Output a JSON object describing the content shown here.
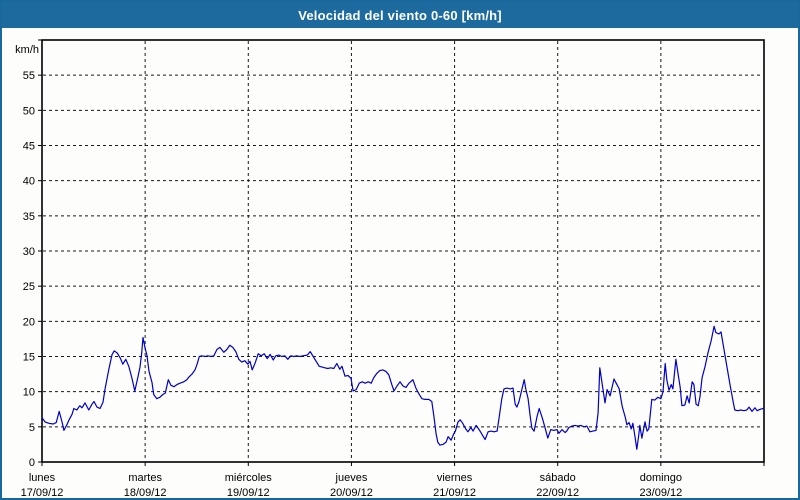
{
  "window": {
    "title": "Velocidad del viento 0-60 [km/h]"
  },
  "colors": {
    "titlebar": "#1d6a9e",
    "frame_border": "#19689d",
    "background": "#fdfdfb",
    "plot_border": "#000000",
    "gridline": "#1a1a1a",
    "line": "#0000cc",
    "title_text": "#ffffff",
    "axis_text": "#000000"
  },
  "chart_data": {
    "type": "line",
    "title": "Velocidad del viento 0-60 [km/h]",
    "ylabel": "km/h",
    "ylim": [
      0,
      60
    ],
    "ytick_step": 5,
    "ytick_labels": [
      "0",
      "5",
      "10",
      "15",
      "20",
      "25",
      "30",
      "35",
      "40",
      "45",
      "50",
      "55"
    ],
    "xlim_hours": [
      0,
      168
    ],
    "grid": "dashed",
    "legend_position": "none",
    "days": [
      {
        "name": "lunes",
        "date": "17/09/12"
      },
      {
        "name": "martes",
        "date": "18/09/12"
      },
      {
        "name": "miércoles",
        "date": "19/09/12"
      },
      {
        "name": "jueves",
        "date": "20/09/12"
      },
      {
        "name": "viernes",
        "date": "21/09/12"
      },
      {
        "name": "sábado",
        "date": "22/09/12"
      },
      {
        "name": "domingo",
        "date": "23/09/12"
      }
    ],
    "series": [
      {
        "name": "Velocidad del viento",
        "unit": "km/h",
        "x_unit": "hours_from_2012-09-17_00:00",
        "points": [
          [
            0,
            6.3
          ],
          [
            0.7,
            5.7
          ],
          [
            1.6,
            5.5
          ],
          [
            2.6,
            5.4
          ],
          [
            3.3,
            5.6
          ],
          [
            4.0,
            7.2
          ],
          [
            4.7,
            5.6
          ],
          [
            5.1,
            4.5
          ],
          [
            5.8,
            5.3
          ],
          [
            6.3,
            6.0
          ],
          [
            7.0,
            6.8
          ],
          [
            7.4,
            7.6
          ],
          [
            8.1,
            7.4
          ],
          [
            8.8,
            8.0
          ],
          [
            9.3,
            7.7
          ],
          [
            10.0,
            8.4
          ],
          [
            10.9,
            7.4
          ],
          [
            11.6,
            8.2
          ],
          [
            12.1,
            8.6
          ],
          [
            12.8,
            7.8
          ],
          [
            13.5,
            7.6
          ],
          [
            14.2,
            8.5
          ],
          [
            14.7,
            10.5
          ],
          [
            15.6,
            13.3
          ],
          [
            16.3,
            15.3
          ],
          [
            16.8,
            15.8
          ],
          [
            17.5,
            15.5
          ],
          [
            18.2,
            14.8
          ],
          [
            18.8,
            13.9
          ],
          [
            19.5,
            14.6
          ],
          [
            20.2,
            13.6
          ],
          [
            20.9,
            12.0
          ],
          [
            21.6,
            10.1
          ],
          [
            22.3,
            12.0
          ],
          [
            22.8,
            13.5
          ],
          [
            23.2,
            15.5
          ],
          [
            23.5,
            17.7
          ],
          [
            24.0,
            16.2
          ],
          [
            24.4,
            15.2
          ],
          [
            24.9,
            12.9
          ],
          [
            25.6,
            11.3
          ],
          [
            26.0,
            9.6
          ],
          [
            26.7,
            9.0
          ],
          [
            27.4,
            9.2
          ],
          [
            28.1,
            9.6
          ],
          [
            28.7,
            9.8
          ],
          [
            29.4,
            11.7
          ],
          [
            30.0,
            10.9
          ],
          [
            30.7,
            10.7
          ],
          [
            31.4,
            11.0
          ],
          [
            32.1,
            11.2
          ],
          [
            33.0,
            11.4
          ],
          [
            33.7,
            11.7
          ],
          [
            34.2,
            12.1
          ],
          [
            34.9,
            12.5
          ],
          [
            35.6,
            13.1
          ],
          [
            36.1,
            13.9
          ],
          [
            36.6,
            15.0
          ],
          [
            37.2,
            15.1
          ],
          [
            37.9,
            15.0
          ],
          [
            38.6,
            15.1
          ],
          [
            39.3,
            15.0
          ],
          [
            40.0,
            15.1
          ],
          [
            40.7,
            16.0
          ],
          [
            41.4,
            16.3
          ],
          [
            42.3,
            15.6
          ],
          [
            43.0,
            16.0
          ],
          [
            43.7,
            16.6
          ],
          [
            44.4,
            16.3
          ],
          [
            45.1,
            15.7
          ],
          [
            45.8,
            14.6
          ],
          [
            46.5,
            14.2
          ],
          [
            47.2,
            14.4
          ],
          [
            47.9,
            13.9
          ],
          [
            48.4,
            14.3
          ],
          [
            48.9,
            13.1
          ],
          [
            49.6,
            14.1
          ],
          [
            50.3,
            15.4
          ],
          [
            51.0,
            15.1
          ],
          [
            51.7,
            15.4
          ],
          [
            52.4,
            14.7
          ],
          [
            53.1,
            15.3
          ],
          [
            53.8,
            14.5
          ],
          [
            54.4,
            15.1
          ],
          [
            55.1,
            15.2
          ],
          [
            55.8,
            15.0
          ],
          [
            56.5,
            15.1
          ],
          [
            57.2,
            14.6
          ],
          [
            57.9,
            15.1
          ],
          [
            58.6,
            15.0
          ],
          [
            59.3,
            15.1
          ],
          [
            60.0,
            15.0
          ],
          [
            60.7,
            15.1
          ],
          [
            61.7,
            15.2
          ],
          [
            62.4,
            15.7
          ],
          [
            63.1,
            15.0
          ],
          [
            63.8,
            14.3
          ],
          [
            64.5,
            13.6
          ],
          [
            65.2,
            13.5
          ],
          [
            65.8,
            13.4
          ],
          [
            66.5,
            13.3
          ],
          [
            67.2,
            13.4
          ],
          [
            67.9,
            13.3
          ],
          [
            68.6,
            14.0
          ],
          [
            69.3,
            13.2
          ],
          [
            69.8,
            13.6
          ],
          [
            70.5,
            12.2
          ],
          [
            71.2,
            12.3
          ],
          [
            71.9,
            11.9
          ],
          [
            72.4,
            10.1
          ],
          [
            73.1,
            10.3
          ],
          [
            73.8,
            11.2
          ],
          [
            74.5,
            11.4
          ],
          [
            75.2,
            11.2
          ],
          [
            75.9,
            11.4
          ],
          [
            76.6,
            11.2
          ],
          [
            77.2,
            12.0
          ],
          [
            77.9,
            12.6
          ],
          [
            78.6,
            13.0
          ],
          [
            79.3,
            13.1
          ],
          [
            80.0,
            12.9
          ],
          [
            80.7,
            12.4
          ],
          [
            81.4,
            11.0
          ],
          [
            81.9,
            10.1
          ],
          [
            82.6,
            10.8
          ],
          [
            83.3,
            11.4
          ],
          [
            84.0,
            10.8
          ],
          [
            84.7,
            10.6
          ],
          [
            85.4,
            11.2
          ],
          [
            86.3,
            11.7
          ],
          [
            87.0,
            10.5
          ],
          [
            87.7,
            9.7
          ],
          [
            88.4,
            9.0
          ],
          [
            89.1,
            8.9
          ],
          [
            90.0,
            8.9
          ],
          [
            90.7,
            8.6
          ],
          [
            91.2,
            6.5
          ],
          [
            91.7,
            4.0
          ],
          [
            92.1,
            2.8
          ],
          [
            92.6,
            2.4
          ],
          [
            93.3,
            2.5
          ],
          [
            94.0,
            2.8
          ],
          [
            94.5,
            3.6
          ],
          [
            95.2,
            3.1
          ],
          [
            95.8,
            4.0
          ],
          [
            96.2,
            4.4
          ],
          [
            96.8,
            5.7
          ],
          [
            97.3,
            6.0
          ],
          [
            97.9,
            5.5
          ],
          [
            98.6,
            4.7
          ],
          [
            99.1,
            4.3
          ],
          [
            99.8,
            4.9
          ],
          [
            100.3,
            4.4
          ],
          [
            101.0,
            5.2
          ],
          [
            101.7,
            4.6
          ],
          [
            102.4,
            3.9
          ],
          [
            103.1,
            3.2
          ],
          [
            103.8,
            4.3
          ],
          [
            104.5,
            4.4
          ],
          [
            105.2,
            4.3
          ],
          [
            105.9,
            4.4
          ],
          [
            106.3,
            6.0
          ],
          [
            107.0,
            9.0
          ],
          [
            107.5,
            10.4
          ],
          [
            108.2,
            10.5
          ],
          [
            108.9,
            10.4
          ],
          [
            109.6,
            10.5
          ],
          [
            110.1,
            8.2
          ],
          [
            110.5,
            7.8
          ],
          [
            111.0,
            8.6
          ],
          [
            111.7,
            10.4
          ],
          [
            112.2,
            11.7
          ],
          [
            112.6,
            10.3
          ],
          [
            113.1,
            9.0
          ],
          [
            113.6,
            6.5
          ],
          [
            114.0,
            4.8
          ],
          [
            114.5,
            4.4
          ],
          [
            115.2,
            6.5
          ],
          [
            115.7,
            7.6
          ],
          [
            116.4,
            6.3
          ],
          [
            117.0,
            5.0
          ],
          [
            117.7,
            3.4
          ],
          [
            118.4,
            4.6
          ],
          [
            119.1,
            4.5
          ],
          [
            119.8,
            4.6
          ],
          [
            120.3,
            4.1
          ],
          [
            121.0,
            4.6
          ],
          [
            121.7,
            4.2
          ],
          [
            122.1,
            4.4
          ],
          [
            122.6,
            4.9
          ],
          [
            123.3,
            5.1
          ],
          [
            124.0,
            5.2
          ],
          [
            124.7,
            5.1
          ],
          [
            125.4,
            5.2
          ],
          [
            126.1,
            5.0
          ],
          [
            126.8,
            5.1
          ],
          [
            127.5,
            4.3
          ],
          [
            128.2,
            4.4
          ],
          [
            128.9,
            4.5
          ],
          [
            129.4,
            7.0
          ],
          [
            129.8,
            13.4
          ],
          [
            130.5,
            10.5
          ],
          [
            131.0,
            8.4
          ],
          [
            131.5,
            10.3
          ],
          [
            132.2,
            9.4
          ],
          [
            132.6,
            10.5
          ],
          [
            133.1,
            11.8
          ],
          [
            133.6,
            11.2
          ],
          [
            134.3,
            10.4
          ],
          [
            135.0,
            7.9
          ],
          [
            135.7,
            6.4
          ],
          [
            136.1,
            5.3
          ],
          [
            136.6,
            5.6
          ],
          [
            137.1,
            4.7
          ],
          [
            137.5,
            5.5
          ],
          [
            138.0,
            3.5
          ],
          [
            138.4,
            1.8
          ],
          [
            138.9,
            4.0
          ],
          [
            139.1,
            5.2
          ],
          [
            139.6,
            3.4
          ],
          [
            140.3,
            5.7
          ],
          [
            140.8,
            4.4
          ],
          [
            141.2,
            4.7
          ],
          [
            141.9,
            8.9
          ],
          [
            142.6,
            8.8
          ],
          [
            143.3,
            9.2
          ],
          [
            144.0,
            9.0
          ],
          [
            144.5,
            10.0
          ],
          [
            145.0,
            14.0
          ],
          [
            145.4,
            11.6
          ],
          [
            145.9,
            10.2
          ],
          [
            146.4,
            11.0
          ],
          [
            146.8,
            10.4
          ],
          [
            147.5,
            14.6
          ],
          [
            148.0,
            12.6
          ],
          [
            148.5,
            10.6
          ],
          [
            148.9,
            8.0
          ],
          [
            149.6,
            8.1
          ],
          [
            150.1,
            9.4
          ],
          [
            150.6,
            8.4
          ],
          [
            151.3,
            11.4
          ],
          [
            151.7,
            11.0
          ],
          [
            152.2,
            8.2
          ],
          [
            152.7,
            8.0
          ],
          [
            153.1,
            9.3
          ],
          [
            153.6,
            12.0
          ],
          [
            154.3,
            13.6
          ],
          [
            155.0,
            15.6
          ],
          [
            155.7,
            17.2
          ],
          [
            156.4,
            19.3
          ],
          [
            156.8,
            18.4
          ],
          [
            157.5,
            18.2
          ],
          [
            158.0,
            18.5
          ],
          [
            158.7,
            16.0
          ],
          [
            159.4,
            13.5
          ],
          [
            160.1,
            11.0
          ],
          [
            160.8,
            8.6
          ],
          [
            161.2,
            7.4
          ],
          [
            161.9,
            7.3
          ],
          [
            162.6,
            7.4
          ],
          [
            163.3,
            7.3
          ],
          [
            164.0,
            7.4
          ],
          [
            164.5,
            7.8
          ],
          [
            165.2,
            7.2
          ],
          [
            165.9,
            7.7
          ],
          [
            166.4,
            7.3
          ],
          [
            167.1,
            7.5
          ],
          [
            167.8,
            7.6
          ],
          [
            168.0,
            7.6
          ]
        ]
      }
    ]
  }
}
